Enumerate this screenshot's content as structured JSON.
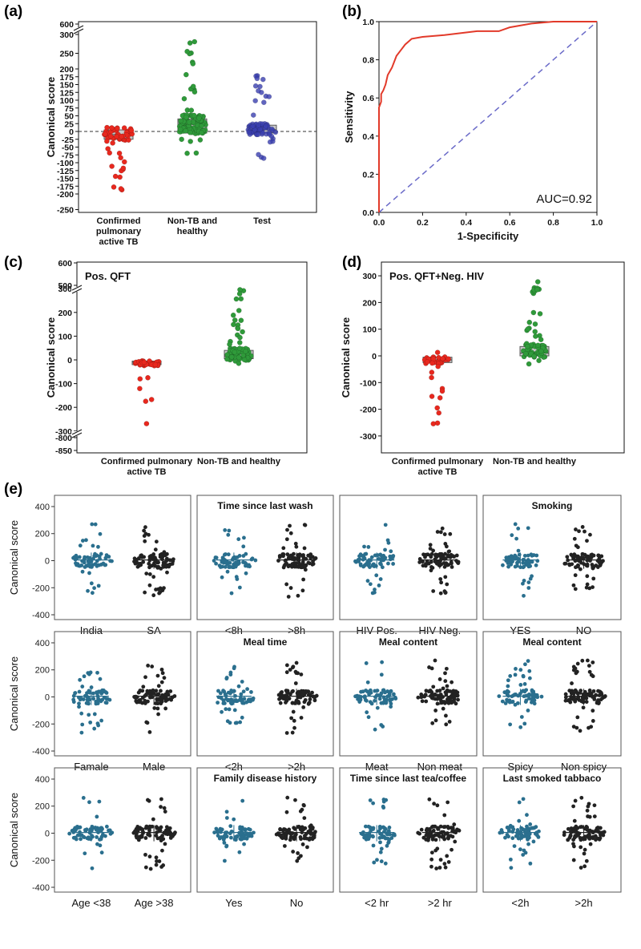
{
  "panel_labels": {
    "a": "(a)",
    "b": "(b)",
    "c": "(c)",
    "d": "(d)",
    "e": "(e)"
  },
  "chart_data": [
    {
      "id": "a",
      "type": "scatter",
      "ylabel": "Canonical score",
      "y_ticks": [
        "600",
        "300",
        "250",
        "200",
        "175",
        "150",
        "125",
        "100",
        "75",
        "50",
        "25",
        "0",
        "-25",
        "-50",
        "-75",
        "-100",
        "-125",
        "-150",
        "-175",
        "-200",
        "-250"
      ],
      "ylim": [
        -250,
        600
      ],
      "axis_break": [
        300,
        600
      ],
      "categories": [
        "Confirmed pulmonary active TB",
        "Non-TB and healthy",
        "Test"
      ],
      "category_lines": [
        [
          "Confirmed",
          "pulmonary",
          "active TB"
        ],
        [
          "Non-TB and",
          "healthy"
        ],
        [
          "Test"
        ]
      ],
      "colors": [
        "#e8281e",
        "#2f9a3a",
        "#3a3fb0"
      ],
      "box_q1": [
        -25,
        -5,
        -5
      ],
      "box_q3": [
        5,
        40,
        20
      ],
      "median": [
        -10,
        10,
        5
      ],
      "range_y": [
        [
          -195,
          20
        ],
        [
          -70,
          300
        ],
        [
          -110,
          200
        ]
      ],
      "n_points": [
        55,
        110,
        70
      ]
    },
    {
      "id": "b",
      "type": "line",
      "xlabel": "1-Specificity",
      "ylabel": "Sensitivity",
      "xlim": [
        0,
        1
      ],
      "ylim": [
        0,
        1
      ],
      "x_ticks": [
        "0.0",
        "0.2",
        "0.4",
        "0.6",
        "0.8",
        "1.0"
      ],
      "y_ticks": [
        "0.0",
        "0.2",
        "0.4",
        "0.6",
        "0.8",
        "1.0"
      ],
      "annotation": "AUC=0.92",
      "roc_x": [
        0,
        0,
        0.01,
        0.01,
        0.02,
        0.03,
        0.04,
        0.05,
        0.06,
        0.08,
        0.1,
        0.12,
        0.15,
        0.2,
        0.3,
        0.45,
        0.55,
        0.6,
        0.7,
        0.8,
        1.0
      ],
      "roc_y": [
        0,
        0.55,
        0.58,
        0.62,
        0.64,
        0.67,
        0.72,
        0.74,
        0.76,
        0.82,
        0.85,
        0.88,
        0.91,
        0.92,
        0.93,
        0.95,
        0.95,
        0.97,
        0.99,
        1.0,
        1.0
      ],
      "diagonal": true
    },
    {
      "id": "c",
      "type": "scatter",
      "title": "Pos. QFT",
      "ylabel": "Canonical score",
      "y_ticks": [
        "600",
        "500",
        "300",
        "200",
        "100",
        "0",
        "-100",
        "-200",
        "-300",
        "-800",
        "-850"
      ],
      "ylim": [
        -850,
        600
      ],
      "categories": [
        "Confirmed pulmonary active TB",
        "Non-TB and healthy"
      ],
      "category_lines": [
        [
          "Confirmed pulmonary",
          "active TB"
        ],
        [
          "Non-TB and healthy"
        ]
      ],
      "colors": [
        "#e8281e",
        "#2f9a3a"
      ],
      "box_q1": [
        -20,
        5
      ],
      "box_q3": [
        -5,
        40
      ],
      "median": [
        -10,
        15
      ],
      "range_y": [
        [
          -310,
          10
        ],
        [
          -40,
          300
        ]
      ],
      "n_points": [
        45,
        80
      ]
    },
    {
      "id": "d",
      "type": "scatter",
      "title": "Pos. QFT+Neg. HIV",
      "ylabel": "Canonical score",
      "y_ticks": [
        "300",
        "200",
        "100",
        "0",
        "-100",
        "-200",
        "-300"
      ],
      "ylim": [
        -300,
        300
      ],
      "categories": [
        "Confirmed pulmonary active TB",
        "Non-TB and healthy"
      ],
      "category_lines": [
        [
          "Confirmed pulmonary",
          "active TB"
        ],
        [
          "Non-TB and healthy"
        ]
      ],
      "colors": [
        "#e8281e",
        "#2f9a3a"
      ],
      "box_q1": [
        -25,
        0
      ],
      "box_q3": [
        -5,
        35
      ],
      "median": [
        -15,
        10
      ],
      "range_y": [
        [
          -265,
          15
        ],
        [
          -40,
          285
        ]
      ],
      "n_points": [
        40,
        70
      ]
    }
  ],
  "panel_e": {
    "ylabel": "Canonical score",
    "y_ticks": [
      "400",
      "200",
      "0",
      "-200",
      "-400"
    ],
    "ylim": [
      -450,
      450
    ],
    "colors": {
      "teal": "#2a6f8e",
      "black": "#222222"
    },
    "subplots": [
      {
        "title": "",
        "groups": [
          "India",
          "SA"
        ]
      },
      {
        "title": "Time since last wash",
        "groups": [
          "<8h",
          ">8h"
        ]
      },
      {
        "title": "",
        "groups": [
          "HIV Pos.",
          "HIV Neg."
        ]
      },
      {
        "title": "Smoking",
        "groups": [
          "YES",
          "NO"
        ]
      },
      {
        "title": "",
        "groups": [
          "Famale",
          "Male"
        ]
      },
      {
        "title": "Meal time",
        "groups": [
          "<2h",
          ">2h"
        ]
      },
      {
        "title": "Meal content",
        "groups": [
          "Meat",
          "Non meat"
        ]
      },
      {
        "title": "Meal content",
        "groups": [
          "Spicy",
          "Non spicy"
        ]
      },
      {
        "title": "",
        "groups": [
          "Age <38",
          "Age >38"
        ]
      },
      {
        "title": "Family disease history",
        "groups": [
          "Yes",
          "No"
        ]
      },
      {
        "title": "Time since last tea/coffee",
        "groups": [
          "<2 hr",
          ">2 hr"
        ]
      },
      {
        "title": "Last smoked tabbaco",
        "groups": [
          "<2h",
          ">2h"
        ]
      }
    ]
  }
}
